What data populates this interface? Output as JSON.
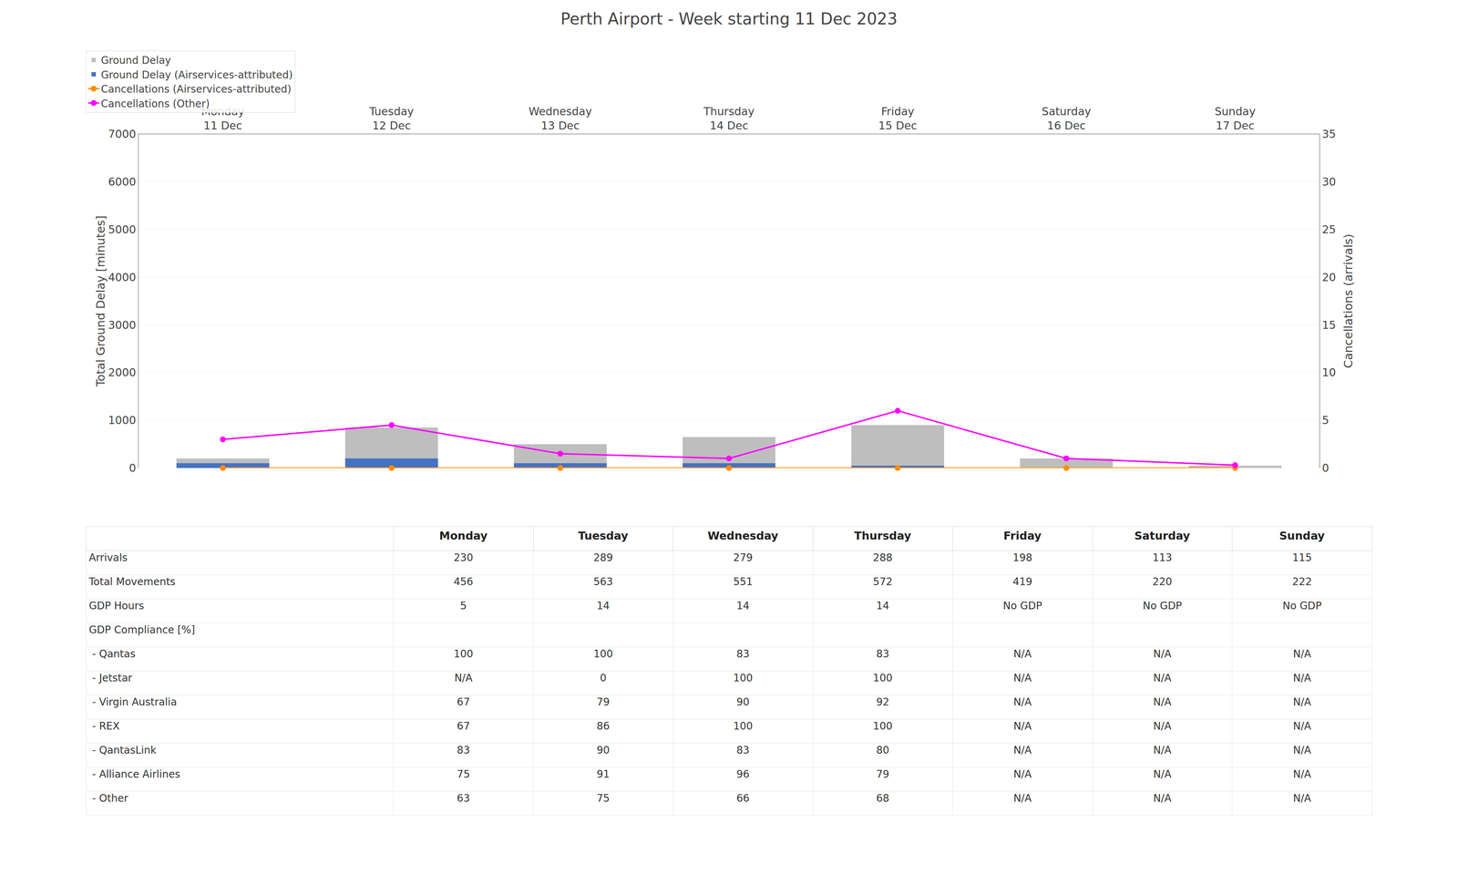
{
  "chart_data": {
    "type": "bar",
    "title": "Perth Airport - Week starting 11 Dec 2023",
    "categories": [
      "Monday\n11 Dec",
      "Tuesday\n12 Dec",
      "Wednesday\n13 Dec",
      "Thursday\n14 Dec",
      "Friday\n15 Dec",
      "Saturday\n16 Dec",
      "Sunday\n17 Dec"
    ],
    "series": [
      {
        "name": "Ground Delay",
        "type": "bar",
        "color": "#BEBEBE",
        "values": [
          200,
          850,
          500,
          650,
          900,
          200,
          50
        ]
      },
      {
        "name": "Ground Delay (Airservices-attributed)",
        "type": "bar",
        "color": "#4472C4",
        "values": [
          100,
          200,
          100,
          100,
          50,
          0,
          0
        ]
      },
      {
        "name": "Cancellations (Airservices-attributed)",
        "type": "line",
        "axis": "y2",
        "marker": "circle",
        "color": "#FF8C00",
        "values": [
          0,
          0,
          0,
          0,
          0,
          0,
          0
        ]
      },
      {
        "name": "Cancellations (Other)",
        "type": "line",
        "axis": "y2",
        "marker": "circle",
        "color": "#FF00FF",
        "values": [
          3.0,
          4.5,
          1.5,
          1.0,
          6.0,
          1.0,
          0.3
        ]
      }
    ],
    "stacked": false,
    "ylabel": "Total Ground Delay [minutes]",
    "y2label": "Cancellations (arrivals)",
    "ylim": [
      0,
      7000
    ],
    "yticks": [
      0,
      1000,
      2000,
      3000,
      4000,
      5000,
      6000,
      7000
    ],
    "y2lim": [
      0,
      35
    ],
    "y2ticks": [
      0,
      5,
      10,
      15,
      20,
      25,
      30,
      35
    ],
    "grid": true,
    "legend": "upper left",
    "table": {
      "columns": [
        null,
        "Monday",
        "Tuesday",
        "Wednesday",
        "Thursday",
        "Friday",
        "Saturday",
        "Sunday"
      ],
      "rows": [
        [
          "Arrivals",
          "230",
          "289",
          "279",
          "288",
          "198",
          "113",
          "115"
        ],
        [
          "Total Movements",
          "456",
          "563",
          "551",
          "572",
          "419",
          "220",
          "222"
        ],
        [
          "GDP Hours",
          "5",
          "14",
          "14",
          "14",
          "No GDP",
          "No GDP",
          "No GDP"
        ],
        [
          "GDP Compliance [%]",
          null,
          null,
          null,
          null,
          null,
          null,
          null
        ],
        [
          " - Qantas",
          "100",
          "100",
          "83",
          "83",
          "N/A",
          "N/A",
          "N/A"
        ],
        [
          " - Jetstar",
          "N/A",
          "0",
          "100",
          "100",
          "N/A",
          "N/A",
          "N/A"
        ],
        [
          " - Virgin Australia",
          "67",
          "79",
          "90",
          "92",
          "N/A",
          "N/A",
          "N/A"
        ],
        [
          " - REX",
          "67",
          "86",
          "100",
          "100",
          "N/A",
          "N/A",
          "N/A"
        ],
        [
          " - QantasLink",
          "83",
          "90",
          "83",
          "80",
          "N/A",
          "N/A",
          "N/A"
        ],
        [
          " - Alliance Airlines",
          "75",
          "91",
          "96",
          "79",
          "N/A",
          "N/A",
          "N/A"
        ],
        [
          " - Other",
          "63",
          "75",
          "66",
          "68",
          "N/A",
          "N/A",
          "N/A"
        ]
      ]
    }
  }
}
